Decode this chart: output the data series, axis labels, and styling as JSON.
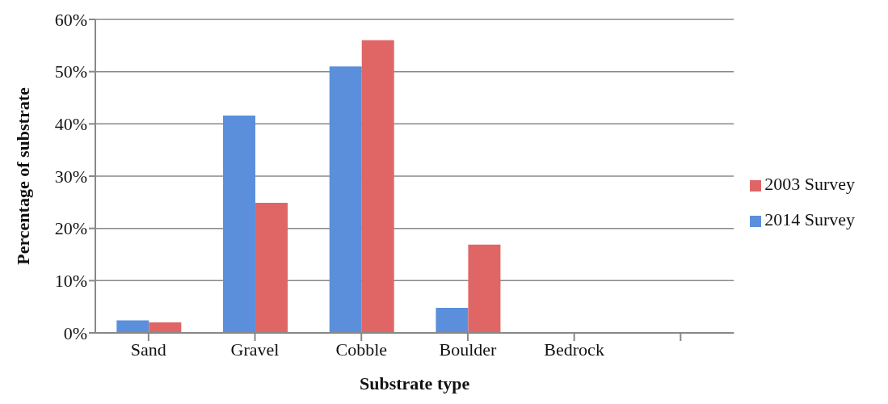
{
  "chart_data": {
    "type": "bar",
    "xlabel": "Substrate type",
    "ylabel": "Percentage of substrate",
    "categories": [
      "Sand",
      "Gravel",
      "Cobble",
      "Boulder",
      "Bedrock",
      null
    ],
    "series": [
      {
        "name": "2014 Survey",
        "color": "#5b8fdc",
        "values": [
          2.4,
          41.6,
          51.0,
          4.8,
          0,
          null
        ]
      },
      {
        "name": "2003 Survey",
        "color": "#e06666",
        "values": [
          2.0,
          24.9,
          56.0,
          16.9,
          0,
          null
        ]
      }
    ],
    "ylim": [
      0,
      60
    ],
    "yticks": [
      {
        "value": 0,
        "label": "0%"
      },
      {
        "value": 10,
        "label": "10%"
      },
      {
        "value": 20,
        "label": "20%"
      },
      {
        "value": 30,
        "label": "30%"
      },
      {
        "value": 40,
        "label": "40%"
      },
      {
        "value": 50,
        "label": "50%"
      },
      {
        "value": 60,
        "label": "60%"
      }
    ],
    "grid": "y",
    "legend": "right"
  }
}
